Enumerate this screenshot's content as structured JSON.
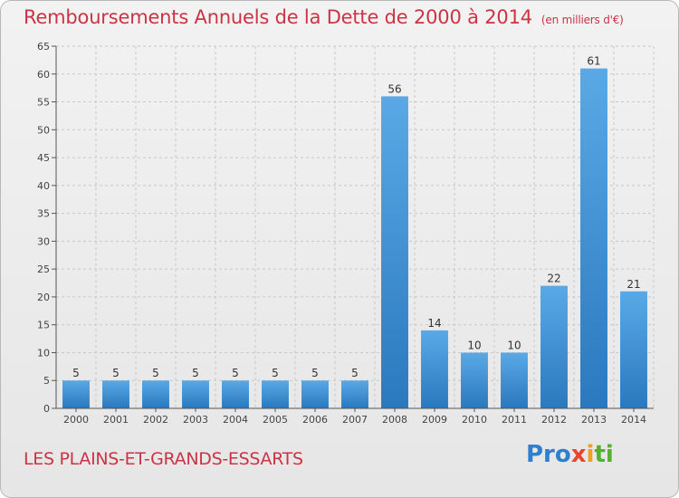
{
  "title": "Remboursements Annuels de la Dette de 2000 à 2014",
  "subtitle": "(en milliers d'€)",
  "commune": "LES PLAINS-ET-GRANDS-ESSARTS",
  "logo": [
    "Pro",
    "x",
    "i",
    "ti"
  ],
  "colors": {
    "bar": "#3a8fd8",
    "title": "#cc3344",
    "grid": "#c8c8c8"
  },
  "chart_data": {
    "type": "bar",
    "title": "Remboursements Annuels de la Dette de 2000 à 2014",
    "xlabel": "",
    "ylabel": "",
    "ylim": [
      0,
      65
    ],
    "yticks": [
      0,
      5,
      10,
      15,
      20,
      25,
      30,
      35,
      40,
      45,
      50,
      55,
      60,
      65
    ],
    "grid": true,
    "categories": [
      "2000",
      "2001",
      "2002",
      "2003",
      "2004",
      "2005",
      "2006",
      "2007",
      "2008",
      "2009",
      "2010",
      "2011",
      "2012",
      "2013",
      "2014"
    ],
    "values": [
      5,
      5,
      5,
      5,
      5,
      5,
      5,
      5,
      56,
      14,
      10,
      10,
      22,
      61,
      21
    ]
  }
}
